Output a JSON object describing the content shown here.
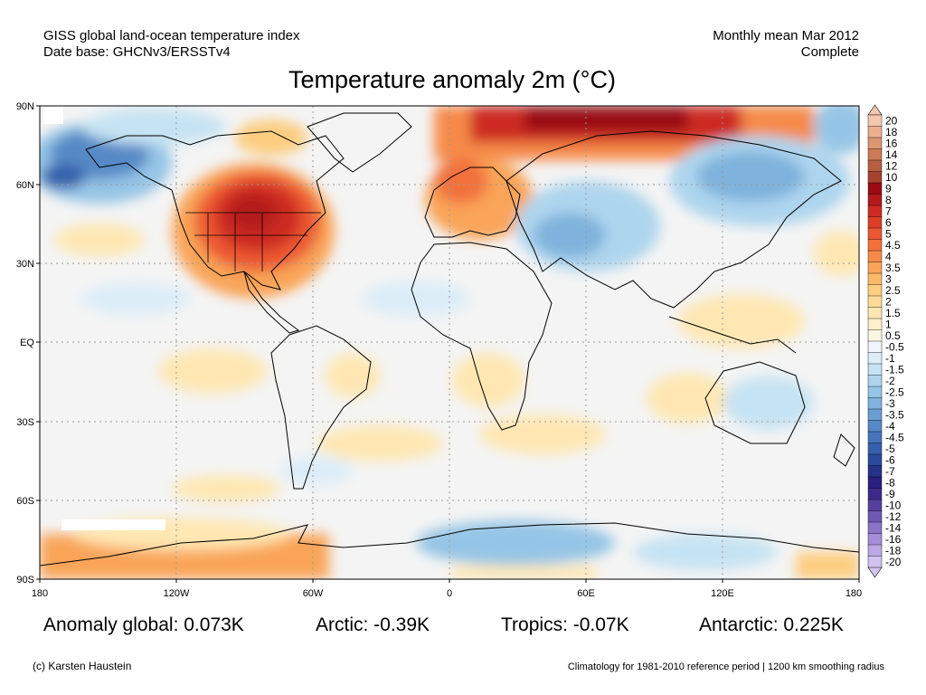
{
  "header": {
    "left_line1": "GISS global land-ocean temperature index",
    "left_line2": "Date base: GHCNv3/ERSSTv4",
    "right_line1": "Monthly mean Mar 2012",
    "right_line2": "Complete"
  },
  "title": "Temperature anomaly 2m (°C)",
  "axes": {
    "lat_labels": [
      "90N",
      "60N",
      "30N",
      "EQ",
      "30S",
      "60S",
      "90S"
    ],
    "lon_labels": [
      "180",
      "120W",
      "60W",
      "0",
      "60E",
      "120E",
      "180"
    ]
  },
  "colorbar": {
    "labels": [
      "20",
      "18",
      "16",
      "14",
      "12",
      "10",
      "9",
      "8",
      "7",
      "6",
      "5",
      "4.5",
      "4",
      "3.5",
      "3",
      "2.5",
      "2",
      "1.5",
      "1",
      "0.5",
      "-0.5",
      "-1",
      "-1.5",
      "-2",
      "-2.5",
      "-3",
      "-3.5",
      "-4",
      "-4.5",
      "-5",
      "-6",
      "-7",
      "-8",
      "-9",
      "-10",
      "-12",
      "-14",
      "-16",
      "-18",
      "-20"
    ],
    "colors": [
      "#f4c8ae",
      "#eab090",
      "#dc9672",
      "#cc7a58",
      "#b85f42",
      "#a4432e",
      "#980c12",
      "#b41a1c",
      "#cc2a22",
      "#de3e28",
      "#ec5832",
      "#f2713c",
      "#f68a48",
      "#f9a458",
      "#fbba6a",
      "#fdcd80",
      "#fedc98",
      "#fee7b2",
      "#fff0ca",
      "#fbf5e4",
      "#f0f6fb",
      "#dcedf8",
      "#c6e3f3",
      "#aed5ee",
      "#95c5e6",
      "#7fb2dc",
      "#6a9ed2",
      "#5689c6",
      "#4574b9",
      "#3660ab",
      "#2a4b9b",
      "#25338a",
      "#2a1f7e",
      "#3e2a8c",
      "#56409e",
      "#6e58b2",
      "#8a74c6",
      "#a48ed6",
      "#bba8e4",
      "#d2c2f0"
    ]
  },
  "stats": {
    "global": "Anomaly global: 0.073K",
    "arctic": "Arctic: -0.39K",
    "tropics": "Tropics: -0.07K",
    "antarctic": "Antarctic: 0.225K"
  },
  "footer": {
    "left": "(c) Karsten Haustein",
    "right": "Climatology for 1981-2010 reference period | 1200 km smoothing radius"
  }
}
